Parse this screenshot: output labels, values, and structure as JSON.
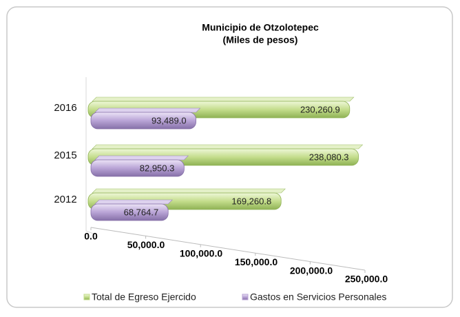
{
  "chart_data": {
    "type": "bar3d-horizontal",
    "title": "Municipio de Otzolotepec",
    "subtitle": "(Miles de pesos)",
    "categories": [
      "2016",
      "2015",
      "2012"
    ],
    "series": [
      {
        "name": "Total de Egreso Ejercido",
        "color": "#c4dd8c",
        "values": [
          230260.9,
          238080.3,
          169260.8
        ],
        "value_labels": [
          "230,260.9",
          "238,080.3",
          "169,260.8"
        ]
      },
      {
        "name": "Gastos en Servicios Personales",
        "color": "#b9a4d6",
        "values": [
          93489.0,
          82950.3,
          68764.7
        ],
        "value_labels": [
          "93,489.0",
          "82,950.3",
          "68,764.7"
        ]
      }
    ],
    "xlim": [
      0,
      250000
    ],
    "xticks": [
      {
        "value": 0,
        "label": "0.0"
      },
      {
        "value": 50000,
        "label": "50,000.0"
      },
      {
        "value": 100000,
        "label": "100,000.0"
      },
      {
        "value": 150000,
        "label": "150,000.0"
      },
      {
        "value": 200000,
        "label": "200,000.0"
      },
      {
        "value": 250000,
        "label": "250,000.0"
      }
    ],
    "legend": "bottom"
  }
}
